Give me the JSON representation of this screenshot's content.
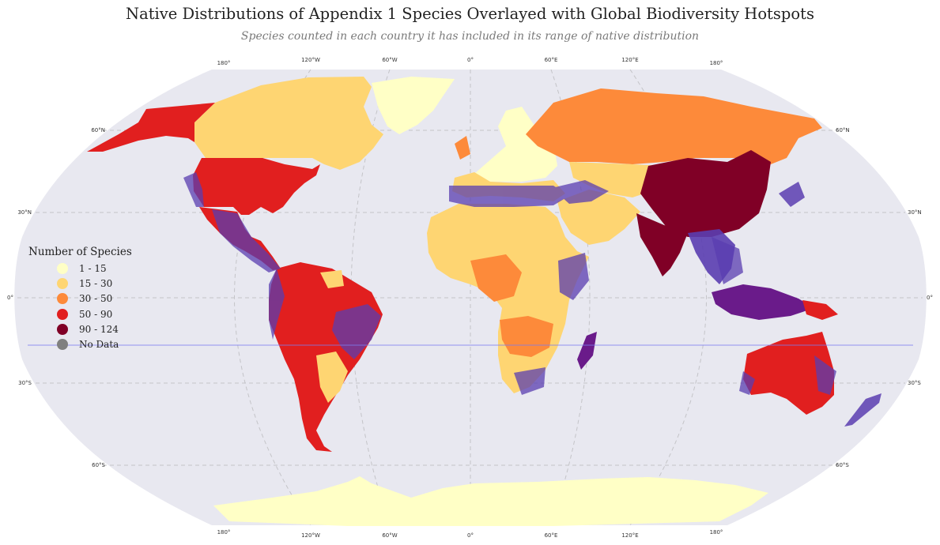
{
  "title": "Native Distributions of Appendix 1 Species Overlayed with Global Biodiversity Hotspots",
  "subtitle": "Species counted in each country it has included in its range of native distribution",
  "map": {
    "projection": "Robinson",
    "background_color": "#e8e8f0",
    "grid": true,
    "longitude_labels": [
      "180°",
      "120°W",
      "60°W",
      "0°",
      "60°E",
      "120°E",
      "180°"
    ],
    "latitude_labels": [
      "60°N",
      "30°N",
      "0°",
      "30°S",
      "60°S"
    ],
    "hotspot_color": "#5a3db0"
  },
  "legend": {
    "title": "Number of Species",
    "items": [
      {
        "label": "1 - 15",
        "color": "#ffffc6"
      },
      {
        "label": "15 - 30",
        "color": "#fed572"
      },
      {
        "label": "30 - 50",
        "color": "#fd8a3a"
      },
      {
        "label": "50 - 90",
        "color": "#e11f1f"
      },
      {
        "label": "90 - 124",
        "color": "#800026"
      },
      {
        "label": "No Data",
        "color": "#808080"
      }
    ]
  }
}
